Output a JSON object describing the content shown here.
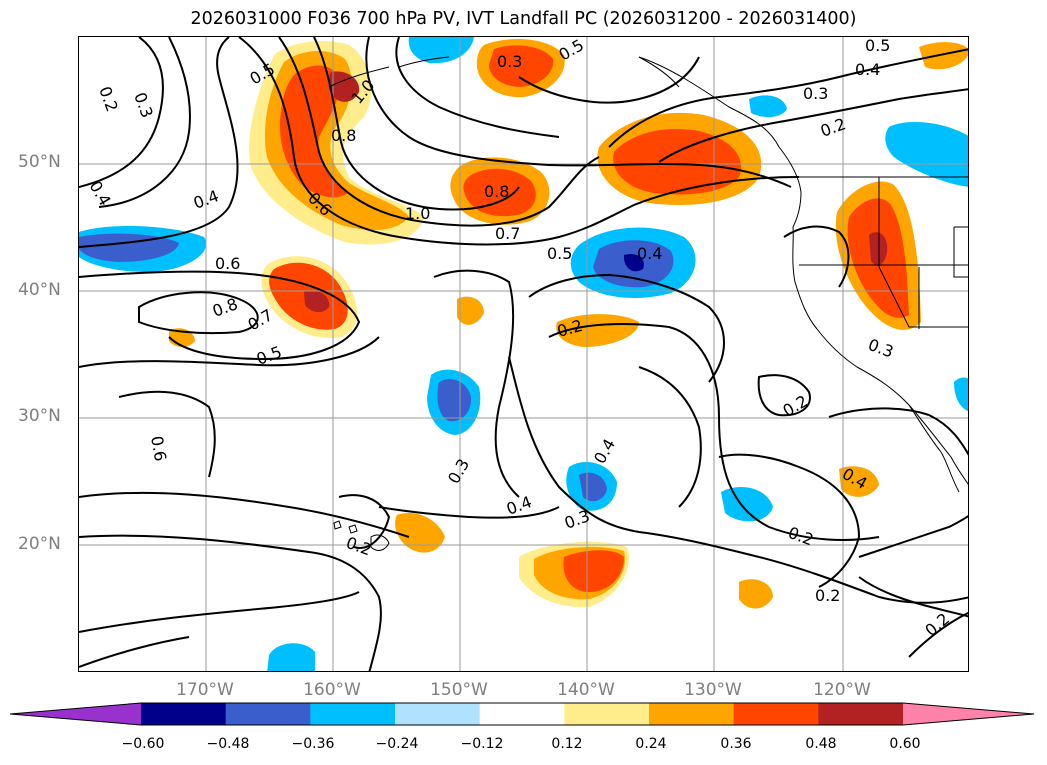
{
  "title": "2026031000 F036 700 hPa PV, IVT Landfall PC (2026031200 - 2026031400)",
  "lat_labels": [
    "50°N",
    "40°N",
    "30°N",
    "20°N"
  ],
  "lon_labels": [
    "170°W",
    "160°W",
    "150°W",
    "140°W",
    "130°W",
    "120°W"
  ],
  "colorbar": {
    "colors": [
      "#9932CC",
      "#00008B",
      "#3A5FCD",
      "#00BFFF",
      "#B0E2FF",
      "#FFFFFF",
      "#FFEC8B",
      "#FFA500",
      "#FF4500",
      "#B22222",
      "#FF82AB"
    ],
    "ticks": [
      "−0.60",
      "−0.48",
      "−0.36",
      "−0.24",
      "−0.12",
      "0.12",
      "0.24",
      "0.36",
      "0.48",
      "0.60"
    ]
  },
  "contour_labels": [
    "0.2",
    "0.3",
    "0.5",
    "1.0",
    "0.3",
    "0.5",
    "0.4",
    "0.3",
    "0.8",
    "0.4",
    "0.6",
    "1.0",
    "0.8",
    "0.7",
    "0.5",
    "0.4",
    "0.6",
    "0.8",
    "0.7",
    "0.5",
    "0.2",
    "0.2",
    "0.4",
    "0.3",
    "0.6",
    "0.3",
    "0.4",
    "0.3",
    "0.4",
    "0.2",
    "0.2",
    "0.4",
    "0.2",
    "0.2",
    "0.2",
    "0.5"
  ],
  "chart_data": {
    "type": "map",
    "title": "2026031000 F036 700 hPa PV, IVT Landfall PC (2026031200 - 2026031400)",
    "field_contoured": "700 hPa PV (contours, labeled values 0.2 to 1.0)",
    "field_shaded": "IVT Landfall PC (shaded, diverging)",
    "lon_range": [
      -180,
      -110
    ],
    "lat_range": [
      10,
      60
    ],
    "grid": true,
    "colorbar_levels": [
      -0.6,
      -0.48,
      -0.36,
      -0.24,
      -0.12,
      0.12,
      0.24,
      0.36,
      0.48,
      0.6
    ],
    "colorbar_extend": "both",
    "pv_contour_values": [
      0.2,
      0.3,
      0.4,
      0.5,
      0.6,
      0.7,
      0.8,
      1.0
    ]
  }
}
